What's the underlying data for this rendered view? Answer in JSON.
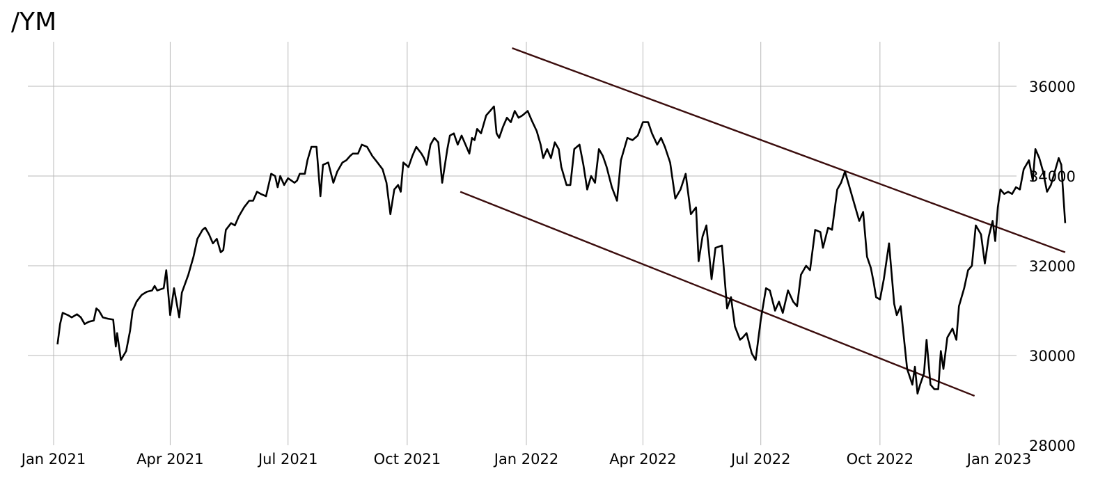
{
  "title": "/YM",
  "chart_data": {
    "type": "line",
    "title": "/YM",
    "xlabel": "",
    "ylabel": "",
    "ylim": [
      28000,
      37000
    ],
    "xlim": [
      "2020-12-20",
      "2023-01-10"
    ],
    "grid": true,
    "y_axis_position": "right",
    "x_ticks": [
      "Jan 2021",
      "Apr 2021",
      "Jul 2021",
      "Oct 2021",
      "Jan 2022",
      "Apr 2022",
      "Jul 2022",
      "Oct 2022",
      "Jan 2023"
    ],
    "x_tick_dates": [
      "2021-01-01",
      "2021-04-01",
      "2021-07-01",
      "2021-10-01",
      "2022-01-01",
      "2022-04-01",
      "2022-07-01",
      "2022-10-01",
      "2023-01-01"
    ],
    "y_ticks": [
      28000,
      30000,
      32000,
      34000,
      36000
    ],
    "series": [
      {
        "name": "/YM",
        "color": "#000000",
        "points": [
          [
            "2021-01-04",
            30250
          ],
          [
            "2021-01-06",
            30700
          ],
          [
            "2021-01-08",
            30950
          ],
          [
            "2021-01-12",
            30900
          ],
          [
            "2021-01-15",
            30850
          ],
          [
            "2021-01-19",
            30920
          ],
          [
            "2021-01-22",
            30850
          ],
          [
            "2021-01-25",
            30700
          ],
          [
            "2021-01-28",
            30750
          ],
          [
            "2021-02-01",
            30780
          ],
          [
            "2021-02-03",
            31050
          ],
          [
            "2021-02-05",
            31000
          ],
          [
            "2021-02-08",
            30850
          ],
          [
            "2021-02-12",
            30820
          ],
          [
            "2021-02-16",
            30800
          ],
          [
            "2021-02-18",
            30200
          ],
          [
            "2021-02-19",
            30500
          ],
          [
            "2021-02-22",
            29900
          ],
          [
            "2021-02-26",
            30100
          ],
          [
            "2021-03-01",
            30550
          ],
          [
            "2021-03-03",
            31000
          ],
          [
            "2021-03-06",
            31200
          ],
          [
            "2021-03-10",
            31350
          ],
          [
            "2021-03-14",
            31420
          ],
          [
            "2021-03-18",
            31450
          ],
          [
            "2021-03-20",
            31550
          ],
          [
            "2021-03-22",
            31450
          ],
          [
            "2021-03-27",
            31500
          ],
          [
            "2021-03-29",
            31900
          ],
          [
            "2021-04-01",
            30900
          ],
          [
            "2021-04-04",
            31500
          ],
          [
            "2021-04-08",
            30850
          ],
          [
            "2021-04-10",
            31400
          ],
          [
            "2021-04-15",
            31800
          ],
          [
            "2021-04-19",
            32200
          ],
          [
            "2021-04-22",
            32600
          ],
          [
            "2021-04-26",
            32800
          ],
          [
            "2021-04-28",
            32850
          ],
          [
            "2021-05-01",
            32700
          ],
          [
            "2021-05-04",
            32500
          ],
          [
            "2021-05-07",
            32600
          ],
          [
            "2021-05-10",
            32300
          ],
          [
            "2021-05-12",
            32350
          ],
          [
            "2021-05-14",
            32800
          ],
          [
            "2021-05-18",
            32950
          ],
          [
            "2021-05-21",
            32900
          ],
          [
            "2021-05-24",
            33100
          ],
          [
            "2021-05-28",
            33300
          ],
          [
            "2021-06-01",
            33450
          ],
          [
            "2021-06-04",
            33450
          ],
          [
            "2021-06-07",
            33650
          ],
          [
            "2021-06-10",
            33600
          ],
          [
            "2021-06-14",
            33550
          ],
          [
            "2021-06-16",
            33800
          ],
          [
            "2021-06-18",
            34050
          ],
          [
            "2021-06-21",
            34000
          ],
          [
            "2021-06-23",
            33750
          ],
          [
            "2021-06-25",
            34000
          ],
          [
            "2021-06-28",
            33800
          ],
          [
            "2021-07-01",
            33950
          ],
          [
            "2021-07-06",
            33850
          ],
          [
            "2021-07-08",
            33900
          ],
          [
            "2021-07-10",
            34050
          ],
          [
            "2021-07-14",
            34050
          ],
          [
            "2021-07-16",
            34350
          ],
          [
            "2021-07-19",
            34650
          ],
          [
            "2021-07-23",
            34650
          ],
          [
            "2021-07-26",
            33550
          ],
          [
            "2021-07-28",
            34250
          ],
          [
            "2021-08-01",
            34300
          ],
          [
            "2021-08-05",
            33850
          ],
          [
            "2021-08-08",
            34100
          ],
          [
            "2021-08-12",
            34300
          ],
          [
            "2021-08-15",
            34350
          ],
          [
            "2021-08-18",
            34450
          ],
          [
            "2021-08-20",
            34500
          ],
          [
            "2021-08-24",
            34500
          ],
          [
            "2021-08-27",
            34700
          ],
          [
            "2021-08-31",
            34650
          ],
          [
            "2021-09-04",
            34450
          ],
          [
            "2021-09-08",
            34300
          ],
          [
            "2021-09-12",
            34150
          ],
          [
            "2021-09-15",
            33850
          ],
          [
            "2021-09-18",
            33150
          ],
          [
            "2021-09-21",
            33700
          ],
          [
            "2021-09-24",
            33800
          ],
          [
            "2021-09-26",
            33650
          ],
          [
            "2021-09-28",
            34300
          ],
          [
            "2021-10-02",
            34200
          ],
          [
            "2021-10-05",
            34450
          ],
          [
            "2021-10-08",
            34650
          ],
          [
            "2021-10-12",
            34500
          ],
          [
            "2021-10-14",
            34400
          ],
          [
            "2021-10-16",
            34250
          ],
          [
            "2021-10-19",
            34700
          ],
          [
            "2021-10-22",
            34850
          ],
          [
            "2021-10-25",
            34750
          ],
          [
            "2021-10-28",
            33850
          ],
          [
            "2021-11-01",
            34600
          ],
          [
            "2021-11-03",
            34900
          ],
          [
            "2021-11-06",
            34950
          ],
          [
            "2021-11-09",
            34700
          ],
          [
            "2021-11-12",
            34900
          ],
          [
            "2021-11-15",
            34700
          ],
          [
            "2021-11-18",
            34500
          ],
          [
            "2021-11-20",
            34850
          ],
          [
            "2021-11-22",
            34800
          ],
          [
            "2021-11-24",
            35050
          ],
          [
            "2021-11-27",
            34950
          ],
          [
            "2021-12-01",
            35350
          ],
          [
            "2021-12-04",
            35450
          ],
          [
            "2021-12-07",
            35550
          ],
          [
            "2021-12-09",
            34950
          ],
          [
            "2021-12-11",
            34850
          ],
          [
            "2021-12-14",
            35100
          ],
          [
            "2021-12-17",
            35300
          ],
          [
            "2021-12-20",
            35200
          ],
          [
            "2021-12-23",
            35450
          ],
          [
            "2021-12-26",
            35300
          ],
          [
            "2021-12-29",
            35350
          ],
          [
            "2022-01-02",
            35450
          ],
          [
            "2022-01-05",
            35250
          ],
          [
            "2022-01-09",
            35000
          ],
          [
            "2022-01-12",
            34700
          ],
          [
            "2022-01-14",
            34400
          ],
          [
            "2022-01-17",
            34600
          ],
          [
            "2022-01-20",
            34400
          ],
          [
            "2022-01-23",
            34750
          ],
          [
            "2022-01-26",
            34600
          ],
          [
            "2022-01-28",
            34200
          ],
          [
            "2022-02-01",
            33800
          ],
          [
            "2022-02-04",
            33800
          ],
          [
            "2022-02-07",
            34600
          ],
          [
            "2022-02-11",
            34700
          ],
          [
            "2022-02-14",
            34250
          ],
          [
            "2022-02-17",
            33700
          ],
          [
            "2022-02-20",
            34000
          ],
          [
            "2022-02-23",
            33850
          ],
          [
            "2022-02-26",
            34600
          ],
          [
            "2022-03-01",
            34450
          ],
          [
            "2022-03-04",
            34200
          ],
          [
            "2022-03-08",
            33750
          ],
          [
            "2022-03-12",
            33450
          ],
          [
            "2022-03-15",
            34350
          ],
          [
            "2022-03-20",
            34850
          ],
          [
            "2022-03-24",
            34800
          ],
          [
            "2022-03-28",
            34900
          ],
          [
            "2022-04-01",
            35200
          ],
          [
            "2022-04-05",
            35200
          ],
          [
            "2022-04-08",
            34950
          ],
          [
            "2022-04-12",
            34700
          ],
          [
            "2022-04-15",
            34850
          ],
          [
            "2022-04-18",
            34650
          ],
          [
            "2022-04-22",
            34300
          ],
          [
            "2022-04-26",
            33500
          ],
          [
            "2022-04-30",
            33700
          ],
          [
            "2022-05-04",
            34050
          ],
          [
            "2022-05-08",
            33150
          ],
          [
            "2022-05-12",
            33300
          ],
          [
            "2022-05-14",
            32100
          ],
          [
            "2022-05-17",
            32650
          ],
          [
            "2022-05-20",
            32900
          ],
          [
            "2022-05-24",
            31700
          ],
          [
            "2022-05-27",
            32400
          ],
          [
            "2022-06-01",
            32450
          ],
          [
            "2022-06-05",
            31050
          ],
          [
            "2022-06-08",
            31300
          ],
          [
            "2022-06-11",
            30650
          ],
          [
            "2022-06-15",
            30350
          ],
          [
            "2022-06-17",
            30400
          ],
          [
            "2022-06-20",
            30500
          ],
          [
            "2022-06-24",
            30050
          ],
          [
            "2022-06-27",
            29900
          ],
          [
            "2022-07-01",
            30800
          ],
          [
            "2022-07-05",
            31500
          ],
          [
            "2022-07-08",
            31450
          ],
          [
            "2022-07-12",
            31000
          ],
          [
            "2022-07-15",
            31200
          ],
          [
            "2022-07-18",
            30950
          ],
          [
            "2022-07-22",
            31450
          ],
          [
            "2022-07-26",
            31200
          ],
          [
            "2022-07-29",
            31100
          ],
          [
            "2022-08-01",
            31800
          ],
          [
            "2022-08-05",
            32000
          ],
          [
            "2022-08-08",
            31900
          ],
          [
            "2022-08-12",
            32800
          ],
          [
            "2022-08-16",
            32750
          ],
          [
            "2022-08-18",
            32400
          ],
          [
            "2022-08-22",
            32850
          ],
          [
            "2022-08-25",
            32800
          ],
          [
            "2022-08-29",
            33700
          ],
          [
            "2022-09-01",
            33850
          ],
          [
            "2022-09-04",
            34100
          ],
          [
            "2022-09-08",
            33700
          ],
          [
            "2022-09-12",
            33300
          ],
          [
            "2022-09-15",
            33000
          ],
          [
            "2022-09-18",
            33200
          ],
          [
            "2022-09-21",
            32200
          ],
          [
            "2022-09-24",
            31950
          ],
          [
            "2022-09-26",
            31650
          ],
          [
            "2022-09-28",
            31300
          ],
          [
            "2022-10-01",
            31250
          ],
          [
            "2022-10-04",
            31700
          ],
          [
            "2022-10-08",
            32500
          ],
          [
            "2022-10-12",
            31150
          ],
          [
            "2022-10-14",
            30900
          ],
          [
            "2022-10-17",
            31100
          ],
          [
            "2022-10-20",
            30250
          ],
          [
            "2022-10-22",
            29700
          ],
          [
            "2022-10-26",
            29350
          ],
          [
            "2022-10-28",
            29750
          ],
          [
            "2022-10-30",
            29150
          ],
          [
            "2022-11-01",
            29350
          ],
          [
            "2022-11-04",
            29600
          ],
          [
            "2022-11-06",
            30350
          ],
          [
            "2022-11-09",
            29350
          ],
          [
            "2022-11-12",
            29250
          ],
          [
            "2022-11-15",
            29250
          ],
          [
            "2022-11-17",
            30100
          ],
          [
            "2022-11-19",
            29700
          ],
          [
            "2022-11-22",
            30400
          ],
          [
            "2022-11-26",
            30600
          ],
          [
            "2022-11-29",
            30350
          ],
          [
            "2022-12-01",
            31100
          ],
          [
            "2022-12-05",
            31500
          ],
          [
            "2022-12-08",
            31900
          ],
          [
            "2022-12-11",
            32000
          ],
          [
            "2022-12-14",
            32900
          ],
          [
            "2022-12-18",
            32700
          ],
          [
            "2022-12-21",
            32050
          ],
          [
            "2022-12-24",
            32650
          ],
          [
            "2022-12-27",
            33000
          ],
          [
            "2022-12-29",
            32550
          ],
          [
            "2022-12-31",
            33300
          ],
          [
            "2023-01-02",
            33700
          ],
          [
            "2023-01-05",
            33600
          ],
          [
            "2023-01-08",
            33650
          ],
          [
            "2023-01-11",
            33600
          ],
          [
            "2023-01-14",
            33750
          ],
          [
            "2023-01-17",
            33700
          ],
          [
            "2023-01-20",
            34150
          ],
          [
            "2023-01-24",
            34350
          ],
          [
            "2023-01-27",
            33900
          ],
          [
            "2023-01-29",
            34600
          ],
          [
            "2023-02-01",
            34400
          ],
          [
            "2023-02-04",
            34100
          ],
          [
            "2023-02-07",
            33650
          ],
          [
            "2023-02-10",
            33800
          ],
          [
            "2023-02-13",
            34100
          ],
          [
            "2023-02-16",
            34400
          ],
          [
            "2023-02-18",
            34250
          ],
          [
            "2023-02-21",
            32950
          ]
        ]
      }
    ],
    "annotations": [
      {
        "type": "trendline",
        "name": "channel-upper",
        "color": "#3b0d0d",
        "from": [
          "2021-12-21",
          36850
        ],
        "to": [
          "2023-02-21",
          32300
        ]
      },
      {
        "type": "trendline",
        "name": "channel-lower",
        "color": "#3b0d0d",
        "from": [
          "2021-11-11",
          33650
        ],
        "to": [
          "2022-12-13",
          29100
        ]
      }
    ]
  }
}
